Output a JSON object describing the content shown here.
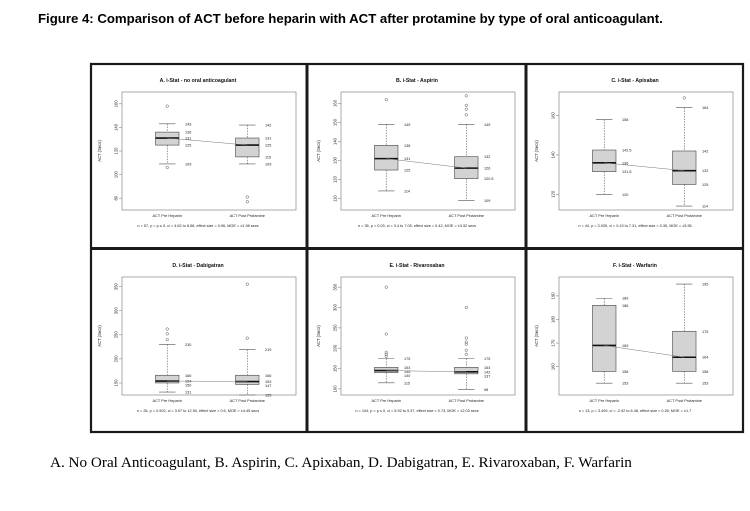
{
  "figure_title": "Figure 4: Comparison of ACT before heparin with ACT after protamine by type of oral anticoagulant.",
  "caption": "A. No Oral Anticoagulant, B. Aspirin, C. Apixaban, D. Dabigatran, E. Rivaroxaban, F. Warfarin",
  "chart_data": [
    {
      "type": "boxplot",
      "title": "A. i-Stat - no oral anticoagulant",
      "ylabel": "ACT (Secs)",
      "ylim": [
        70,
        170
      ],
      "yticks": [
        80,
        100,
        120,
        140,
        160
      ],
      "categories": [
        "ACT Pre Heparin",
        "ACT Post Protamine"
      ],
      "boxes": [
        {
          "whisker_low": 109,
          "q1": 125,
          "median": 131,
          "q3": 136,
          "whisker_high": 143,
          "outliers": [
            106,
            158
          ]
        },
        {
          "whisker_low": 109,
          "q1": 115,
          "median": 125,
          "q3": 131,
          "whisker_high": 142,
          "outliers": [
            77,
            81
          ]
        }
      ],
      "value_labels": [
        [
          "143",
          "136",
          "131",
          "125",
          "109"
        ],
        [
          "142",
          "131",
          "125",
          "115",
          "109"
        ]
      ],
      "stats": "n = 57, p = p ≤ 0, ci = 4.62 to 8.58, effect size = 0.96, MOE = ±1.98 secs"
    },
    {
      "type": "boxplot",
      "title": "B. i-Stat - Aspirin",
      "ylabel": "ACT (Secs)",
      "ylim": [
        104,
        166
      ],
      "yticks": [
        110,
        120,
        130,
        140,
        150,
        160
      ],
      "categories": [
        "ACT Pre Heparin",
        "ACT Post Protamine"
      ],
      "boxes": [
        {
          "whisker_low": 114,
          "q1": 125,
          "median": 131,
          "q3": 138,
          "whisker_high": 149,
          "outliers": [
            162
          ]
        },
        {
          "whisker_low": 109,
          "q1": 120.5,
          "median": 126,
          "q3": 132,
          "whisker_high": 149,
          "outliers": [
            154,
            157,
            159,
            164
          ]
        }
      ],
      "value_labels": [
        [
          "149",
          "138",
          "131",
          "125",
          "114"
        ],
        [
          "149",
          "132",
          "126",
          "120.5",
          "109"
        ]
      ],
      "stats": "n = 35, p = 0.03, ci = 3.4 to 7.05, effect size = 0.42, MOE = ±3.32 secs"
    },
    {
      "type": "boxplot",
      "title": "C. i-Stat - Apixaban",
      "ylabel": "ACT (Secs)",
      "ylim": [
        112,
        172
      ],
      "yticks": [
        120,
        140,
        160
      ],
      "categories": [
        "ACT Pre Heparin",
        "ACT Post Protamine"
      ],
      "boxes": [
        {
          "whisker_low": 120,
          "q1": 131.5,
          "median": 136,
          "q3": 142.5,
          "whisker_high": 158,
          "outliers": []
        },
        {
          "whisker_low": 114,
          "q1": 125,
          "median": 132,
          "q3": 142,
          "whisker_high": 164,
          "outliers": [
            169
          ]
        }
      ],
      "value_labels": [
        [
          "158",
          "142.5",
          "136",
          "131.5",
          "120"
        ],
        [
          "164",
          "142",
          "132",
          "125",
          "114"
        ]
      ],
      "stats": "n = 44, p = 3.039, ci = 0.19 to 7.31, effect size = 0.35, MOE = ±3.55"
    },
    {
      "type": "boxplot",
      "title": "D. i-Stat - Dabigatran",
      "ylabel": "ACT (Secs)",
      "ylim": [
        125,
        370
      ],
      "yticks": [
        150,
        200,
        250,
        300,
        350
      ],
      "categories": [
        "ACT Pre Heparin",
        "ACT Post Protamine"
      ],
      "boxes": [
        {
          "whisker_low": 131,
          "q1": 150,
          "median": 154,
          "q3": 166,
          "whisker_high": 230,
          "outliers": [
            240,
            252,
            262
          ]
        },
        {
          "whisker_low": 125,
          "q1": 147,
          "median": 153,
          "q3": 166,
          "whisker_high": 219,
          "outliers": [
            243,
            355
          ]
        }
      ],
      "value_labels": [
        [
          "230",
          "166",
          "154",
          "150",
          "131"
        ],
        [
          "219",
          "166",
          "153",
          "147",
          "125"
        ]
      ],
      "stats": "n = 26, p = 0.902, ci = 3.57 to 12.50, effect size = 0.6, MOE = ±4.45 secs"
    },
    {
      "type": "boxplot",
      "title": "E. i-Stat - Rivaroxaban",
      "ylabel": "ACT (Secs)",
      "ylim": [
        85,
        375
      ],
      "yticks": [
        100,
        150,
        200,
        250,
        300,
        350
      ],
      "categories": [
        "ACT Pre Heparin",
        "ACT Post Protamine"
      ],
      "boxes": [
        {
          "whisker_low": 115,
          "q1": 140,
          "median": 145,
          "q3": 153,
          "whisker_high": 175,
          "outliers": [
            180,
            185,
            190,
            235,
            350
          ]
        },
        {
          "whisker_low": 98,
          "q1": 137,
          "median": 142,
          "q3": 153,
          "whisker_high": 175,
          "outliers": [
            185,
            195,
            210,
            215,
            225,
            300
          ]
        }
      ],
      "value_labels": [
        [
          "175",
          "153",
          "145",
          "140",
          "115"
        ],
        [
          "175",
          "153",
          "142",
          "137",
          "98"
        ]
      ],
      "stats": "n = 104, p = p ≤ 0, ci = 5.92 to 9.37, effect size = 0.73, MOE = ±2.03 secs"
    },
    {
      "type": "boxplot",
      "title": "F. i-Stat - Warfarin",
      "ylabel": "ACT (Secs)",
      "ylim": [
        148,
        198
      ],
      "yticks": [
        160,
        170,
        180,
        190
      ],
      "categories": [
        "ACT Pre Heparin",
        "ACT Post Protamine"
      ],
      "boxes": [
        {
          "whisker_low": 153,
          "q1": 158,
          "median": 169,
          "q3": 186,
          "whisker_high": 189,
          "outliers": []
        },
        {
          "whisker_low": 153,
          "q1": 158,
          "median": 164,
          "q3": 175,
          "whisker_high": 195,
          "outliers": []
        }
      ],
      "value_labels": [
        [
          "189",
          "186",
          "169",
          "158",
          "153"
        ],
        [
          "195",
          "175",
          "164",
          "158",
          "153"
        ]
      ],
      "stats": "n = 13, p = 3.409, ci = -2.92 to 6.48, effect size = 0.26, MOE = ±1.7"
    }
  ]
}
